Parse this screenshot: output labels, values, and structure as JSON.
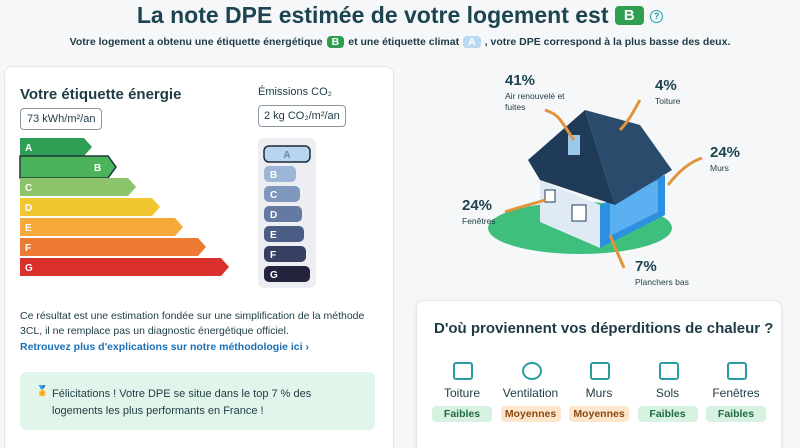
{
  "header": {
    "title": "La note DPE estimée de votre logement est",
    "grade": "B",
    "help": "?",
    "subtitle": [
      "Votre logement a obtenu une étiquette énergétique",
      "B",
      "et une étiquette climat",
      "A",
      ", votre DPE correspond à la plus basse des deux."
    ]
  },
  "energy": {
    "title": "Votre étiquette énergie",
    "value": "73 kWh/m²/an",
    "classes": [
      "A",
      "B",
      "C",
      "D",
      "E",
      "F",
      "G"
    ]
  },
  "climate": {
    "title": "Émissions CO₂",
    "value": "2 kg CO₂/m²/an",
    "classes": [
      "A",
      "B",
      "C",
      "D",
      "E",
      "F",
      "G"
    ]
  },
  "note": {
    "text": "Ce résultat est une estimation fondée sur une simplification de la méthode 3CL, il ne remplace pas un diagnostic énergétique officiel.",
    "link": "Retrouvez plus d'explications sur notre méthodologie ici ›"
  },
  "congrats": "Félicitations ! Votre DPE se situe dans le top 7 % des logements les plus performants en France !",
  "losses": [
    {
      "share": "41%",
      "label": "Air renouvelé et fuites"
    },
    {
      "share": "4%",
      "label": "Toiture"
    },
    {
      "share": "24%",
      "label": "Murs"
    },
    {
      "share": "24%",
      "label": "Fenêtres"
    },
    {
      "share": "7%",
      "label": "Planchers bas"
    }
  ],
  "panel": {
    "title": "D'où proviennent vos déperditions de chaleur ?",
    "items": [
      {
        "name": "Toiture",
        "level": "Faibles"
      },
      {
        "name": "Ventilation",
        "level": "Moyennes"
      },
      {
        "name": "Murs",
        "level": "Moyennes"
      },
      {
        "name": "Sols",
        "level": "Faibles"
      },
      {
        "name": "Fenêtres",
        "level": "Faibles"
      }
    ]
  }
}
